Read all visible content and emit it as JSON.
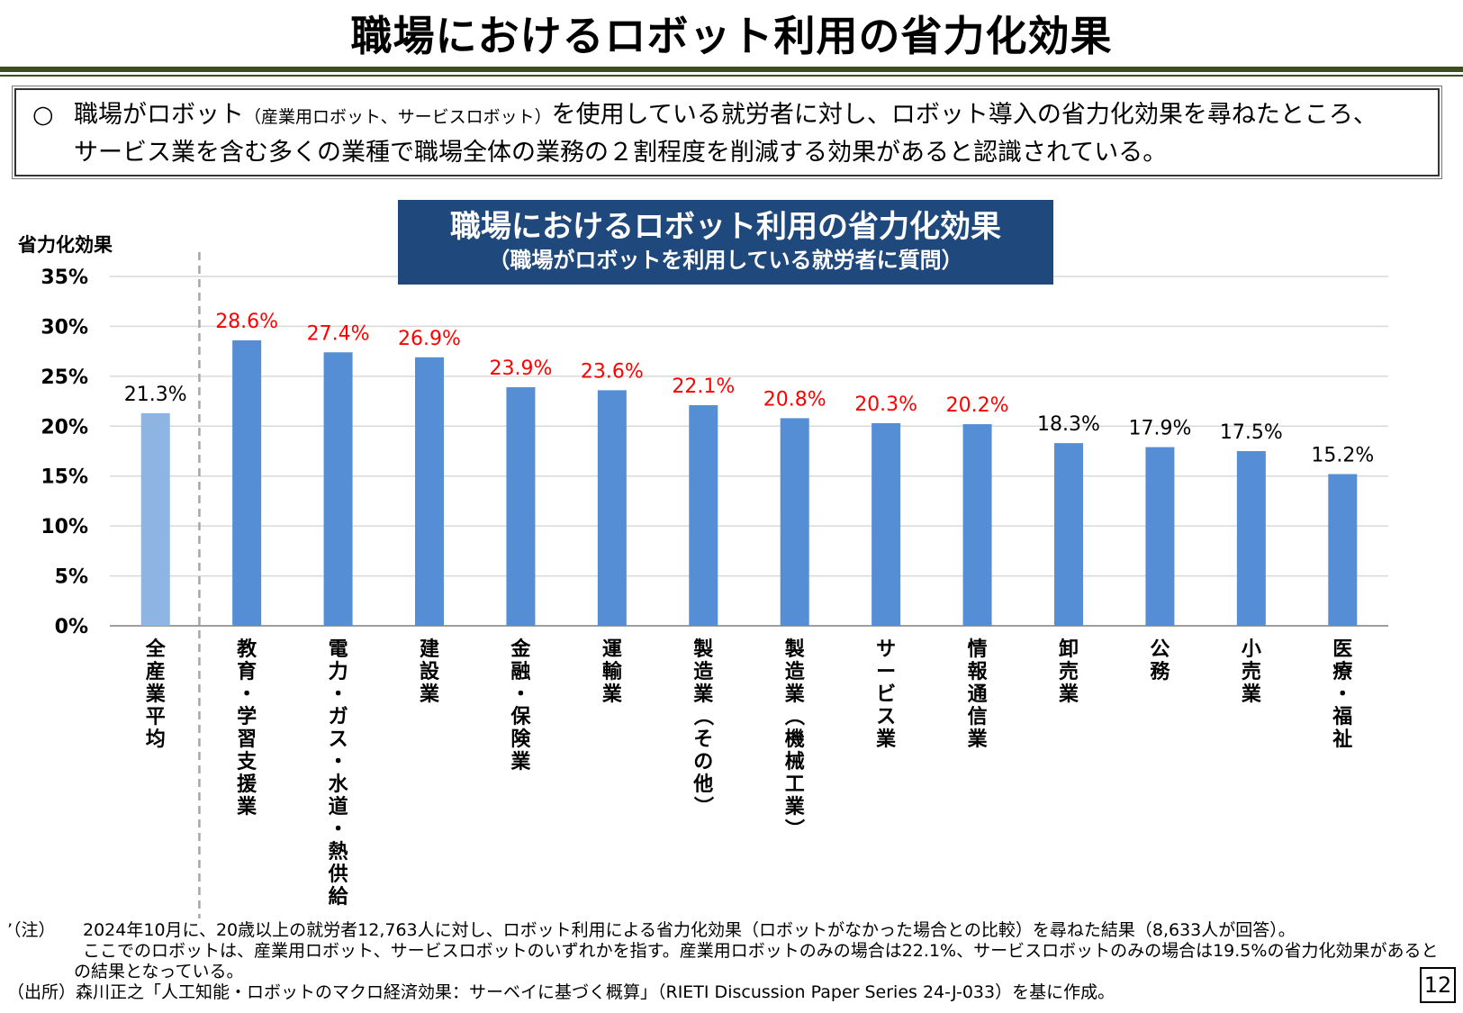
{
  "page": {
    "title": "職場におけるロボット利用の省力化効果",
    "number": "12"
  },
  "summary": {
    "bullet": "○",
    "line1_a": "職場がロボット",
    "line1_small": "（産業用ロボット、サービスロボット）",
    "line1_b": "を使用している就労者に対し、ロボット導入の省力化効果を尋ねたところ、",
    "line2": "サービス業を含む多くの業種で職場全体の業務の２割程度を削減する効果があると認識されている。"
  },
  "chart_data": {
    "type": "bar",
    "title": "職場におけるロボット利用の省力化効果",
    "subtitle": "（職場がロボットを利用している就労者に質問）",
    "ylabel": "省力化効果",
    "ylim": [
      0,
      35
    ],
    "yticks": [
      "0%",
      "5%",
      "10%",
      "15%",
      "20%",
      "25%",
      "30%",
      "35%"
    ],
    "grid": true,
    "categories": [
      "全産業平均",
      "教育・学習支援業",
      "電力・ガス・水道・熱供給",
      "建設業",
      "金融・保険業",
      "運輸業",
      "製造業（その他）",
      "製造業（機械工業）",
      "サービス業",
      "情報通信業",
      "卸売業",
      "公務",
      "小売業",
      "医療・福祉"
    ],
    "values": [
      21.3,
      28.6,
      27.4,
      26.9,
      23.9,
      23.6,
      22.1,
      20.8,
      20.3,
      20.2,
      18.3,
      17.9,
      17.5,
      15.2
    ],
    "data_labels": [
      "21.3%",
      "28.6%",
      "27.4%",
      "26.9%",
      "23.9%",
      "23.6%",
      "22.1%",
      "20.8%",
      "20.3%",
      "20.2%",
      "18.3%",
      "17.9%",
      "17.5%",
      "15.2%"
    ],
    "bar_colors": [
      "#8eb4e3",
      "#558ed5",
      "#558ed5",
      "#558ed5",
      "#558ed5",
      "#558ed5",
      "#558ed5",
      "#558ed5",
      "#558ed5",
      "#558ed5",
      "#558ed5",
      "#558ed5",
      "#558ed5",
      "#558ed5"
    ],
    "label_colors": [
      "#000000",
      "#ff0000",
      "#ff0000",
      "#ff0000",
      "#ff0000",
      "#ff0000",
      "#ff0000",
      "#ff0000",
      "#ff0000",
      "#ff0000",
      "#000000",
      "#000000",
      "#000000",
      "#000000"
    ]
  },
  "notes": {
    "note1_label": "’（注）",
    "note1_line1": "2024年10月に、20歳以上の就労者12,763人に対し、ロボット利用による省力化効果（ロボットがなかった場合との比較）を尋ねた結果（8,633人が回答）。",
    "note1_line2": "ここでのロボットは、産業用ロボット、サービスロボットのいずれかを指す。産業用ロボットのみの場合は22.1%、サービスロボットのみの場合は19.5%の省力化効果があると",
    "note1_line3": "の結果となっている。",
    "source": "（出所）森川正之「人工知能・ロボットのマクロ経済効果：サーベイに基づく概算」（RIETI Discussion Paper Series 24-J-033）を基に作成。"
  },
  "colors": {
    "title_rule": "#3b4f1e",
    "chart_title_bg": "#1f497d",
    "highlight_label": "#ff0000"
  }
}
